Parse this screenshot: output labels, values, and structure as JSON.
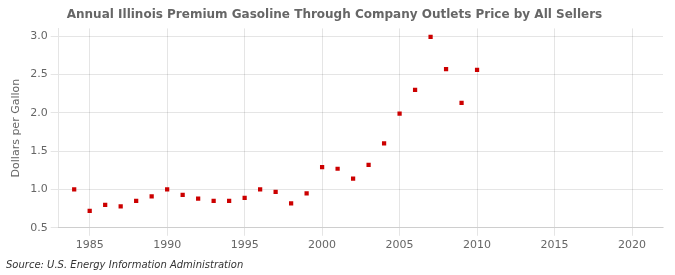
{
  "chart_data": {
    "type": "scatter",
    "title": "Annual Illinois Premium Gasoline Through Company Outlets Price by All Sellers",
    "ylabel": "Dollars per Gallon",
    "annotations": [
      "Source: U.S. Energy Information Administration"
    ],
    "x": [
      1984,
      1985,
      1986,
      1987,
      1988,
      1989,
      1990,
      1991,
      1992,
      1993,
      1994,
      1995,
      1996,
      1997,
      1998,
      1999,
      2000,
      2001,
      2002,
      2003,
      2004,
      2005,
      2006,
      2007,
      2008,
      2009,
      2010
    ],
    "values": [
      1.0,
      0.72,
      0.8,
      0.78,
      0.85,
      0.91,
      1.0,
      0.93,
      0.88,
      0.85,
      0.85,
      0.89,
      1.0,
      0.97,
      0.82,
      0.95,
      1.29,
      1.27,
      1.14,
      1.32,
      1.6,
      1.99,
      2.3,
      2.99,
      2.57,
      2.13,
      2.56
    ],
    "color": "#cc0000",
    "marker": "square",
    "xlim": [
      1983,
      2022
    ],
    "xticks": [
      1985,
      1990,
      1995,
      2000,
      2005,
      2010,
      2015,
      2020
    ],
    "ylim": [
      0.5,
      3.1
    ],
    "yticks": [
      0.5,
      {
        "value": 1.0,
        "label": "1.0"
      },
      1.5,
      {
        "value": 2.0,
        "label": "2.0"
      },
      2.5,
      {
        "value": 3.0,
        "label": "3.0"
      }
    ],
    "grid": true
  }
}
